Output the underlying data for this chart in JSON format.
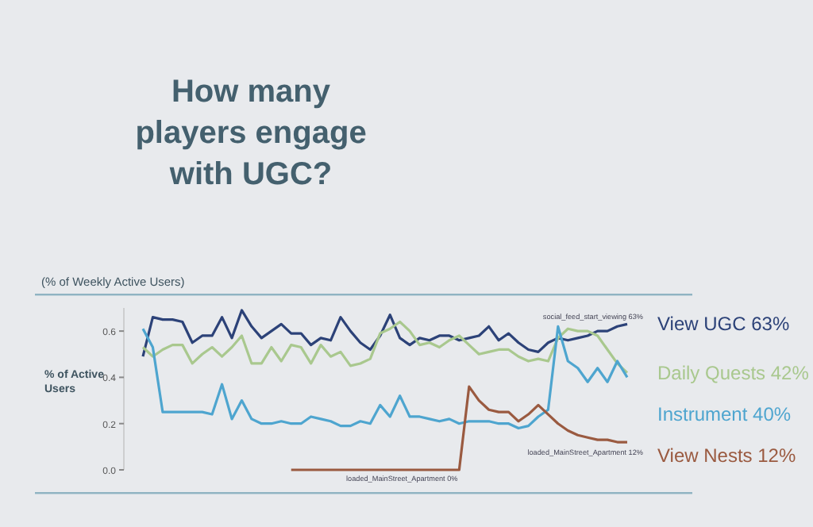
{
  "chart_data": {
    "type": "line",
    "title": "How many players engage with UGC?",
    "subtitle": "(% of Weekly Active Users)",
    "ylabel": "% of Active Users",
    "categories": [
      null,
      null,
      null,
      null,
      null,
      null,
      null,
      null,
      null,
      null,
      null,
      null,
      null,
      null,
      null,
      null,
      null,
      null,
      null,
      null,
      null,
      null,
      null,
      null,
      null,
      null,
      null,
      null,
      null,
      null,
      null,
      null,
      null,
      null,
      null,
      null,
      null,
      null,
      null,
      null,
      null,
      null,
      null,
      null,
      null,
      null,
      null,
      null,
      null,
      null
    ],
    "series": [
      {
        "name": "View UGC 63%",
        "color": "#2c4278",
        "values": [
          0.49,
          0.66,
          0.65,
          0.65,
          0.64,
          0.55,
          0.58,
          0.58,
          0.66,
          0.57,
          0.69,
          0.62,
          0.57,
          0.6,
          0.63,
          0.59,
          0.59,
          0.54,
          0.57,
          0.56,
          0.66,
          0.6,
          0.55,
          0.52,
          0.58,
          0.67,
          0.57,
          0.54,
          0.57,
          0.56,
          0.58,
          0.58,
          0.56,
          0.57,
          0.58,
          0.62,
          0.56,
          0.59,
          0.55,
          0.52,
          0.51,
          0.55,
          0.57,
          0.56,
          0.57,
          0.58,
          0.6,
          0.6,
          0.62,
          0.63
        ]
      },
      {
        "name": "Daily Quests 42%",
        "color": "#a9c88e",
        "values": [
          0.53,
          0.49,
          0.52,
          0.54,
          0.54,
          0.46,
          0.5,
          0.53,
          0.49,
          0.53,
          0.58,
          0.46,
          0.46,
          0.53,
          0.47,
          0.54,
          0.53,
          0.46,
          0.54,
          0.49,
          0.51,
          0.45,
          0.46,
          0.48,
          0.59,
          0.61,
          0.64,
          0.6,
          0.54,
          0.55,
          0.53,
          0.56,
          0.58,
          0.54,
          0.5,
          0.51,
          0.52,
          0.52,
          0.49,
          0.47,
          0.48,
          0.47,
          0.57,
          0.61,
          0.6,
          0.6,
          0.58,
          0.52,
          0.46,
          0.42
        ]
      },
      {
        "name": "Instrument 40%",
        "color": "#4ea5cf",
        "values": [
          0.61,
          0.53,
          0.25,
          0.25,
          0.25,
          0.25,
          0.25,
          0.24,
          0.37,
          0.22,
          0.3,
          0.22,
          0.2,
          0.2,
          0.21,
          0.2,
          0.2,
          0.23,
          0.22,
          0.21,
          0.19,
          0.19,
          0.21,
          0.2,
          0.28,
          0.23,
          0.32,
          0.23,
          0.23,
          0.22,
          0.21,
          0.22,
          0.2,
          0.21,
          0.21,
          0.21,
          0.2,
          0.2,
          0.18,
          0.19,
          0.23,
          0.26,
          0.62,
          0.47,
          0.44,
          0.38,
          0.44,
          0.38,
          0.47,
          0.4
        ]
      },
      {
        "name": "View Nests 12%",
        "color": "#9a5a40",
        "values": [
          null,
          null,
          null,
          null,
          null,
          null,
          null,
          null,
          null,
          null,
          null,
          null,
          null,
          null,
          null,
          0,
          0,
          0,
          0,
          0,
          0,
          0,
          0,
          0,
          0,
          0,
          0,
          0,
          0,
          0,
          0,
          0,
          0,
          0.36,
          0.3,
          0.26,
          0.25,
          0.25,
          0.21,
          0.24,
          0.28,
          0.24,
          0.2,
          0.17,
          0.15,
          0.14,
          0.13,
          0.13,
          0.12,
          0.12
        ]
      }
    ],
    "annotations": [
      {
        "text": "social_feed_start_viewing 63%",
        "y": 0.63
      },
      "loaded_MainStreet_Apartment 0%",
      {
        "text": "loaded_MainStreet_Apartment 12%",
        "y": 0.12
      }
    ],
    "ylim": [
      0,
      0.7
    ],
    "yticks": [
      {
        "value": 0,
        "label": "0.0"
      },
      {
        "value": 0.2,
        "label": "0.2"
      },
      {
        "value": 0.4,
        "label": "0.4"
      },
      {
        "value": 0.6,
        "label": "0.6"
      }
    ],
    "grid": false,
    "legend": "right",
    "tick_labels": "y"
  }
}
